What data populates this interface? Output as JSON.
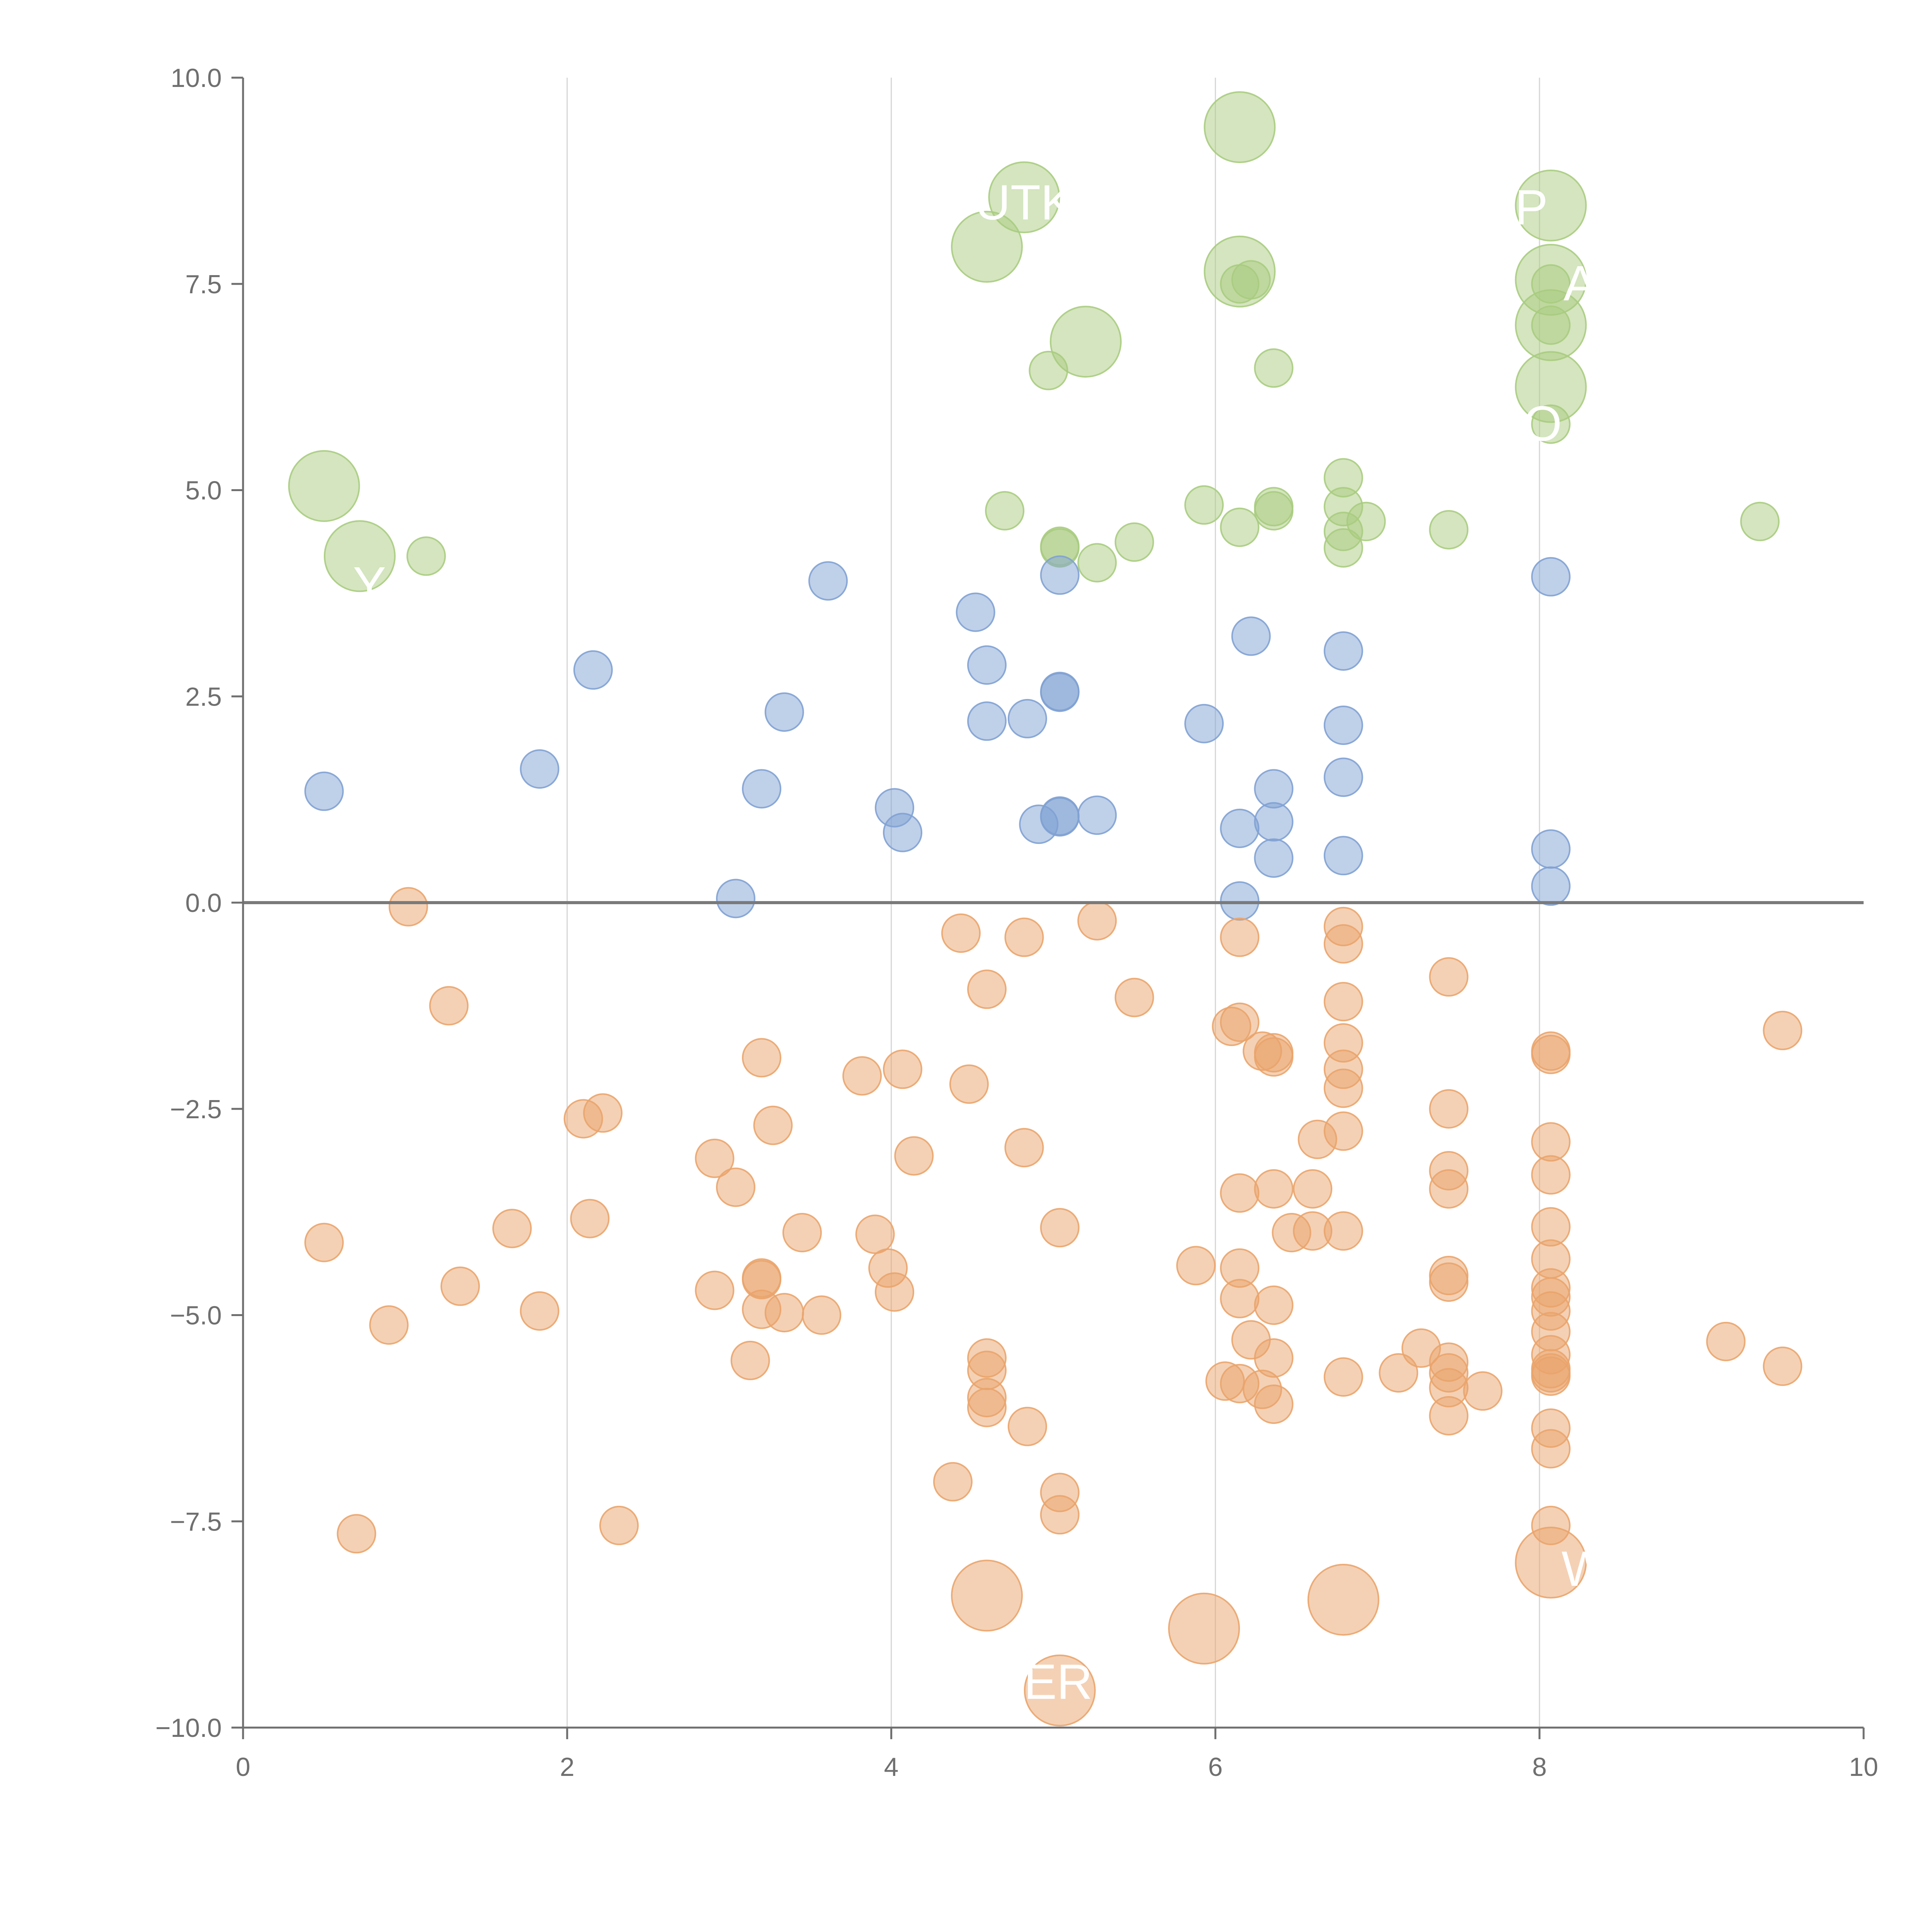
{
  "chart_data": {
    "type": "scatter",
    "title": "",
    "xlabel": "",
    "ylabel": "",
    "xlim": [
      0,
      10
    ],
    "ylim": [
      -10,
      10
    ],
    "x_ticks": [
      {
        "value": 0,
        "label": "0"
      },
      {
        "value": 2,
        "label": "2"
      },
      {
        "value": 4,
        "label": "4"
      },
      {
        "value": 6,
        "label": "6"
      },
      {
        "value": 8,
        "label": "8"
      },
      {
        "value": 10,
        "label": "10"
      }
    ],
    "y_ticks": [
      {
        "value": 10,
        "label": "10.0"
      },
      {
        "value": 7.5,
        "label": "7.5"
      },
      {
        "value": 5,
        "label": "5.0"
      },
      {
        "value": 2.5,
        "label": "2.5"
      },
      {
        "value": 0,
        "label": "0.0"
      },
      {
        "value": -2.5,
        "label": "−2.5"
      },
      {
        "value": -5,
        "label": "−5.0"
      },
      {
        "value": -7.5,
        "label": "−7.5"
      },
      {
        "value": -10,
        "label": "−10.0"
      }
    ],
    "vertical_gridlines_at": [
      2,
      4,
      6,
      8
    ],
    "zero_line": 0,
    "colors": {
      "green": "#a9cc7f",
      "blue": "#7fa1d3",
      "orange": "#eaa46c",
      "axis": "#6f6f6f",
      "grid": "#d6d6d6",
      "zero_line": "#7a7a7a",
      "label": "#ffffff"
    },
    "series": [
      {
        "name": "green",
        "color": "#a9cc7f",
        "points": [
          {
            "x": 6.15,
            "y": 9.4,
            "big": true
          },
          {
            "x": 4.82,
            "y": 8.55,
            "big": true
          },
          {
            "x": 8.07,
            "y": 8.45,
            "big": true
          },
          {
            "x": 4.59,
            "y": 7.95,
            "big": true
          },
          {
            "x": 6.15,
            "y": 7.65,
            "big": true
          },
          {
            "x": 8.07,
            "y": 7.55,
            "big": true
          },
          {
            "x": 8.07,
            "y": 7.0,
            "big": true
          },
          {
            "x": 5.2,
            "y": 6.8,
            "big": true
          },
          {
            "x": 8.07,
            "y": 6.25,
            "big": true
          },
          {
            "x": 0.5,
            "y": 5.05,
            "big": true
          },
          {
            "x": 0.72,
            "y": 4.2,
            "big": true
          },
          {
            "x": 6.15,
            "y": 7.5
          },
          {
            "x": 6.22,
            "y": 7.55
          },
          {
            "x": 8.07,
            "y": 7.5
          },
          {
            "x": 8.07,
            "y": 7.0
          },
          {
            "x": 6.36,
            "y": 6.48
          },
          {
            "x": 4.97,
            "y": 6.45
          },
          {
            "x": 8.07,
            "y": 5.8
          },
          {
            "x": 6.79,
            "y": 5.15
          },
          {
            "x": 4.7,
            "y": 4.75
          },
          {
            "x": 5.93,
            "y": 4.82
          },
          {
            "x": 6.36,
            "y": 4.8
          },
          {
            "x": 6.36,
            "y": 4.75
          },
          {
            "x": 6.79,
            "y": 4.8
          },
          {
            "x": 6.93,
            "y": 4.62
          },
          {
            "x": 6.15,
            "y": 4.55
          },
          {
            "x": 6.79,
            "y": 4.5
          },
          {
            "x": 7.44,
            "y": 4.52
          },
          {
            "x": 9.36,
            "y": 4.62
          },
          {
            "x": 5.5,
            "y": 4.37
          },
          {
            "x": 5.04,
            "y": 4.3
          },
          {
            "x": 5.04,
            "y": 4.32
          },
          {
            "x": 6.79,
            "y": 4.3
          },
          {
            "x": 1.13,
            "y": 4.2
          },
          {
            "x": 5.27,
            "y": 4.12
          }
        ]
      },
      {
        "name": "blue",
        "color": "#7fa1d3",
        "points": [
          {
            "x": 5.04,
            "y": 3.97
          },
          {
            "x": 8.07,
            "y": 3.95
          },
          {
            "x": 3.61,
            "y": 3.9
          },
          {
            "x": 4.52,
            "y": 3.52
          },
          {
            "x": 6.22,
            "y": 3.23
          },
          {
            "x": 6.79,
            "y": 3.05
          },
          {
            "x": 4.59,
            "y": 2.88
          },
          {
            "x": 2.16,
            "y": 2.82
          },
          {
            "x": 5.04,
            "y": 2.55
          },
          {
            "x": 5.04,
            "y": 2.56
          },
          {
            "x": 3.34,
            "y": 2.31
          },
          {
            "x": 4.84,
            "y": 2.23
          },
          {
            "x": 4.59,
            "y": 2.2
          },
          {
            "x": 5.93,
            "y": 2.17
          },
          {
            "x": 6.79,
            "y": 2.15
          },
          {
            "x": 1.83,
            "y": 1.62
          },
          {
            "x": 6.79,
            "y": 1.52
          },
          {
            "x": 6.36,
            "y": 1.38
          },
          {
            "x": 3.2,
            "y": 1.38
          },
          {
            "x": 0.5,
            "y": 1.35
          },
          {
            "x": 4.02,
            "y": 1.15
          },
          {
            "x": 5.27,
            "y": 1.06
          },
          {
            "x": 5.04,
            "y": 1.05
          },
          {
            "x": 5.04,
            "y": 1.04
          },
          {
            "x": 6.36,
            "y": 0.98
          },
          {
            "x": 4.91,
            "y": 0.95
          },
          {
            "x": 6.15,
            "y": 0.9
          },
          {
            "x": 4.07,
            "y": 0.85
          },
          {
            "x": 8.07,
            "y": 0.65
          },
          {
            "x": 6.79,
            "y": 0.57
          },
          {
            "x": 6.36,
            "y": 0.54
          },
          {
            "x": 8.07,
            "y": 0.2
          },
          {
            "x": 3.04,
            "y": 0.05
          },
          {
            "x": 6.15,
            "y": 0.02
          }
        ]
      },
      {
        "name": "orange",
        "color": "#eaa46c",
        "points": [
          {
            "x": 4.59,
            "y": -8.4,
            "big": true
          },
          {
            "x": 5.93,
            "y": -8.8,
            "big": true
          },
          {
            "x": 6.79,
            "y": -8.45,
            "big": true
          },
          {
            "x": 8.07,
            "y": -8.0,
            "big": true
          },
          {
            "x": 5.04,
            "y": -9.55,
            "big": true
          },
          {
            "x": 1.02,
            "y": -0.05
          },
          {
            "x": 5.27,
            "y": -0.22
          },
          {
            "x": 6.79,
            "y": -0.29
          },
          {
            "x": 4.43,
            "y": -0.37
          },
          {
            "x": 6.15,
            "y": -0.42
          },
          {
            "x": 4.82,
            "y": -0.42
          },
          {
            "x": 6.79,
            "y": -0.5
          },
          {
            "x": 7.44,
            "y": -0.9
          },
          {
            "x": 4.59,
            "y": -1.05
          },
          {
            "x": 5.5,
            "y": -1.15
          },
          {
            "x": 6.79,
            "y": -1.2
          },
          {
            "x": 1.27,
            "y": -1.25
          },
          {
            "x": 6.15,
            "y": -1.45
          },
          {
            "x": 6.1,
            "y": -1.5
          },
          {
            "x": 9.5,
            "y": -1.55
          },
          {
            "x": 6.79,
            "y": -1.7
          },
          {
            "x": 6.29,
            "y": -1.8
          },
          {
            "x": 6.36,
            "y": -1.82
          },
          {
            "x": 8.07,
            "y": -1.8
          },
          {
            "x": 8.07,
            "y": -1.84
          },
          {
            "x": 3.2,
            "y": -1.88
          },
          {
            "x": 6.36,
            "y": -1.87
          },
          {
            "x": 4.07,
            "y": -2.02
          },
          {
            "x": 6.79,
            "y": -2.02
          },
          {
            "x": 3.82,
            "y": -2.1
          },
          {
            "x": 4.48,
            "y": -2.2
          },
          {
            "x": 6.79,
            "y": -2.25
          },
          {
            "x": 7.44,
            "y": -2.5
          },
          {
            "x": 2.22,
            "y": -2.55
          },
          {
            "x": 2.1,
            "y": -2.62
          },
          {
            "x": 3.27,
            "y": -2.7
          },
          {
            "x": 6.79,
            "y": -2.77
          },
          {
            "x": 6.63,
            "y": -2.87
          },
          {
            "x": 8.07,
            "y": -2.9
          },
          {
            "x": 4.82,
            "y": -2.97
          },
          {
            "x": 4.14,
            "y": -3.07
          },
          {
            "x": 2.91,
            "y": -3.1
          },
          {
            "x": 7.44,
            "y": -3.25
          },
          {
            "x": 8.07,
            "y": -3.3
          },
          {
            "x": 3.04,
            "y": -3.45
          },
          {
            "x": 7.44,
            "y": -3.47
          },
          {
            "x": 6.36,
            "y": -3.47
          },
          {
            "x": 6.6,
            "y": -3.47
          },
          {
            "x": 6.15,
            "y": -3.52
          },
          {
            "x": 1.66,
            "y": -3.95
          },
          {
            "x": 5.04,
            "y": -3.94
          },
          {
            "x": 8.07,
            "y": -3.93
          },
          {
            "x": 2.14,
            "y": -3.83
          },
          {
            "x": 6.47,
            "y": -4.0
          },
          {
            "x": 6.6,
            "y": -3.98
          },
          {
            "x": 6.79,
            "y": -3.98
          },
          {
            "x": 3.45,
            "y": -4.0
          },
          {
            "x": 3.9,
            "y": -4.02
          },
          {
            "x": 0.5,
            "y": -4.12
          },
          {
            "x": 8.07,
            "y": -4.32
          },
          {
            "x": 5.88,
            "y": -4.4
          },
          {
            "x": 3.98,
            "y": -4.43
          },
          {
            "x": 6.15,
            "y": -4.43
          },
          {
            "x": 3.2,
            "y": -4.55
          },
          {
            "x": 3.2,
            "y": -4.57
          },
          {
            "x": 7.44,
            "y": -4.52
          },
          {
            "x": 7.44,
            "y": -4.6
          },
          {
            "x": 1.34,
            "y": -4.65
          },
          {
            "x": 8.07,
            "y": -4.67
          },
          {
            "x": 2.91,
            "y": -4.7
          },
          {
            "x": 4.02,
            "y": -4.72
          },
          {
            "x": 8.07,
            "y": -4.78
          },
          {
            "x": 6.15,
            "y": -4.8
          },
          {
            "x": 6.36,
            "y": -4.88
          },
          {
            "x": 1.83,
            "y": -4.95
          },
          {
            "x": 3.2,
            "y": -4.93
          },
          {
            "x": 3.34,
            "y": -4.97
          },
          {
            "x": 3.57,
            "y": -5.0
          },
          {
            "x": 8.07,
            "y": -4.95
          },
          {
            "x": 0.9,
            "y": -5.12
          },
          {
            "x": 8.07,
            "y": -5.2
          },
          {
            "x": 6.22,
            "y": -5.3
          },
          {
            "x": 9.15,
            "y": -5.32
          },
          {
            "x": 7.27,
            "y": -5.4
          },
          {
            "x": 8.07,
            "y": -5.48
          },
          {
            "x": 3.13,
            "y": -5.55
          },
          {
            "x": 4.59,
            "y": -5.52
          },
          {
            "x": 6.36,
            "y": -5.52
          },
          {
            "x": 7.44,
            "y": -5.57
          },
          {
            "x": 9.5,
            "y": -5.62
          },
          {
            "x": 4.59,
            "y": -5.67
          },
          {
            "x": 8.07,
            "y": -5.65
          },
          {
            "x": 8.07,
            "y": -5.7
          },
          {
            "x": 8.07,
            "y": -5.74
          },
          {
            "x": 6.79,
            "y": -5.75
          },
          {
            "x": 7.13,
            "y": -5.7
          },
          {
            "x": 7.44,
            "y": -5.7
          },
          {
            "x": 6.06,
            "y": -5.8
          },
          {
            "x": 6.15,
            "y": -5.83
          },
          {
            "x": 6.29,
            "y": -5.9
          },
          {
            "x": 7.44,
            "y": -5.88
          },
          {
            "x": 7.65,
            "y": -5.92
          },
          {
            "x": 4.59,
            "y": -6.0
          },
          {
            "x": 6.36,
            "y": -6.08
          },
          {
            "x": 4.59,
            "y": -6.12
          },
          {
            "x": 7.44,
            "y": -6.22
          },
          {
            "x": 4.84,
            "y": -6.35
          },
          {
            "x": 8.07,
            "y": -6.37
          },
          {
            "x": 8.07,
            "y": -6.62
          },
          {
            "x": 4.38,
            "y": -7.02
          },
          {
            "x": 5.04,
            "y": -7.15
          },
          {
            "x": 5.04,
            "y": -7.42
          },
          {
            "x": 2.32,
            "y": -7.55
          },
          {
            "x": 8.07,
            "y": -7.55
          },
          {
            "x": 0.7,
            "y": -7.65
          }
        ]
      }
    ],
    "annotations": [
      {
        "text": "UTK",
        "x": 4.82,
        "y": 8.28,
        "series": "green"
      },
      {
        "text": "P",
        "x": 7.95,
        "y": 8.22,
        "series": "green"
      },
      {
        "text": "A",
        "x": 8.25,
        "y": 7.3,
        "series": "green"
      },
      {
        "text": "O",
        "x": 8.02,
        "y": 5.6,
        "series": "green"
      },
      {
        "text": "Y",
        "x": 0.78,
        "y": 3.65,
        "series": "green"
      },
      {
        "text": "ER",
        "x": 5.03,
        "y": -9.65,
        "series": "orange"
      },
      {
        "text": "W",
        "x": 8.28,
        "y": -8.28,
        "series": "orange"
      }
    ]
  }
}
